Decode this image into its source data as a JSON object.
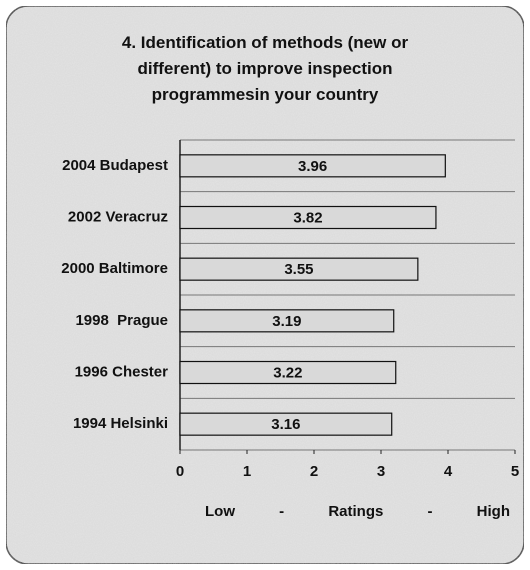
{
  "chart_data": {
    "type": "bar",
    "orientation": "horizontal",
    "title": "4. Identification of methods (new or different) to improve inspection programmesin your country",
    "categories": [
      "2004 Budapest",
      "2002 Veracruz",
      "2000 Baltimore",
      "1998  Prague",
      "1996 Chester",
      "1994 Helsinki"
    ],
    "values": [
      3.96,
      3.82,
      3.55,
      3.19,
      3.22,
      3.16
    ],
    "color": "#d9d9d9",
    "xlim": [
      0,
      5
    ],
    "xticks": [
      0,
      1,
      2,
      3,
      4,
      5
    ],
    "x_label": "Low - Ratings - High",
    "value_labels_shown": true
  }
}
